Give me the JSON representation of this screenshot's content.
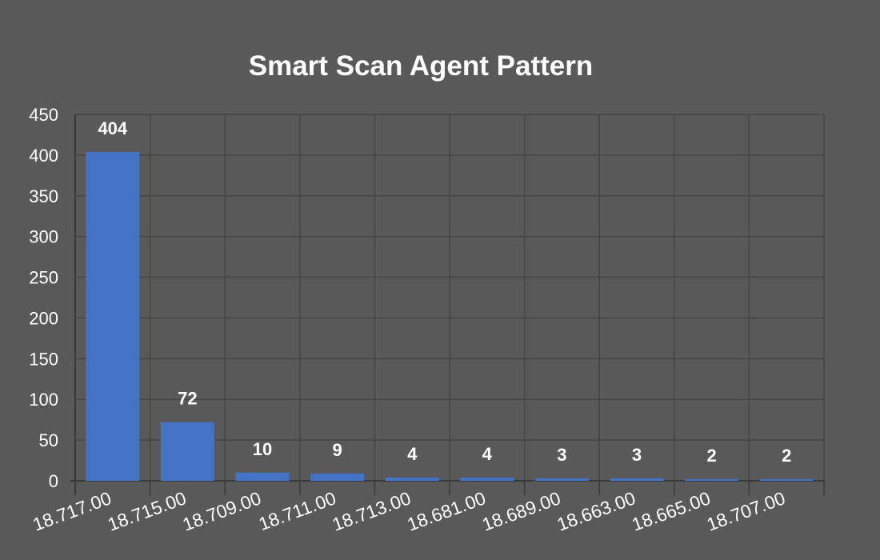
{
  "chart_data": {
    "type": "bar",
    "title": "Smart Scan Agent Pattern",
    "xlabel": "",
    "ylabel": "",
    "categories": [
      "18.717.00",
      "18.715.00",
      "18.709.00",
      "18.711.00",
      "18.713.00",
      "18.681.00",
      "18.689.00",
      "18.663.00",
      "18.665.00",
      "18.707.00"
    ],
    "values": [
      404,
      72,
      10,
      9,
      4,
      4,
      3,
      3,
      2,
      2
    ],
    "ylim": [
      0,
      450
    ],
    "yticks": [
      0,
      50,
      100,
      150,
      200,
      250,
      300,
      350,
      400,
      450
    ],
    "grid": true,
    "legend": "none",
    "data_labels": true
  },
  "colors": {
    "background": "#595959",
    "bar": "#4472C4",
    "grid": "#464646",
    "axis": "#3a3a3a",
    "text": "#ffffff"
  }
}
